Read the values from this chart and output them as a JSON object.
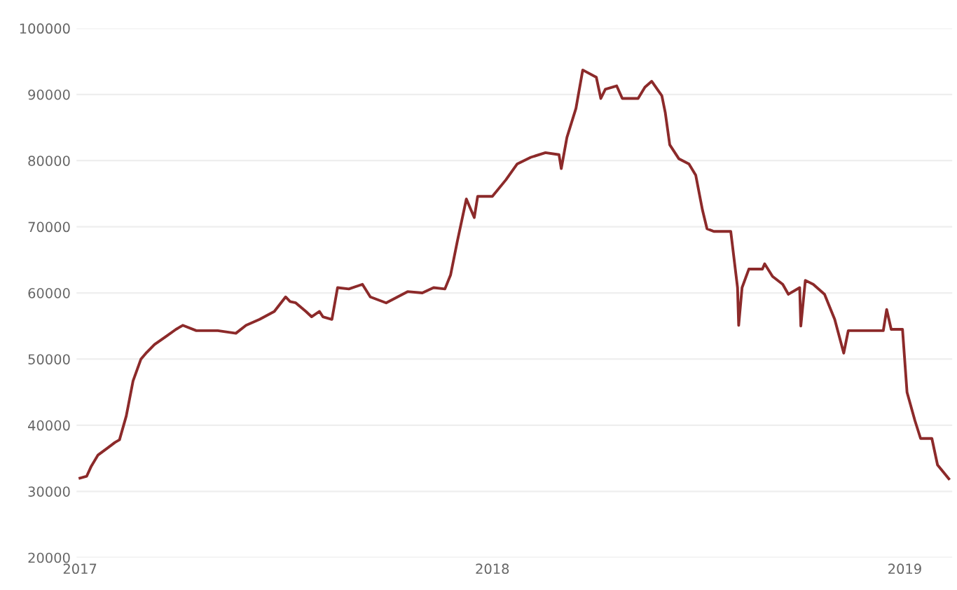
{
  "chart_data": {
    "type": "line",
    "color": "#8c2a2a",
    "grid": "y",
    "line_style": "solid",
    "marker": "none",
    "x": [
      "2017-01-01",
      "2017-01-07",
      "2017-01-11",
      "2017-01-17",
      "2017-01-25",
      "2017-02-01",
      "2017-02-05",
      "2017-02-11",
      "2017-02-17",
      "2017-02-24",
      "2017-03-01",
      "2017-03-08",
      "2017-03-18",
      "2017-03-27",
      "2017-04-02",
      "2017-04-14",
      "2017-05-03",
      "2017-05-19",
      "2017-05-28",
      "2017-06-09",
      "2017-06-22",
      "2017-07-02",
      "2017-07-06",
      "2017-07-11",
      "2017-07-20",
      "2017-07-25",
      "2017-08-01",
      "2017-08-04",
      "2017-08-12",
      "2017-08-17",
      "2017-08-27",
      "2017-09-08",
      "2017-09-15",
      "2017-09-29",
      "2017-10-18",
      "2017-10-31",
      "2017-11-10",
      "2017-11-20",
      "2017-11-25",
      "2017-12-01",
      "2017-12-09",
      "2017-12-16",
      "2017-12-19",
      "2018-01-01",
      "2018-01-13",
      "2018-01-23",
      "2018-02-04",
      "2018-02-17",
      "2018-03-01",
      "2018-03-03",
      "2018-03-08",
      "2018-03-16",
      "2018-03-22",
      "2018-04-03",
      "2018-04-07",
      "2018-04-11",
      "2018-04-21",
      "2018-04-26",
      "2018-05-10",
      "2018-05-16",
      "2018-05-22",
      "2018-05-31",
      "2018-06-03",
      "2018-06-07",
      "2018-06-15",
      "2018-06-24",
      "2018-06-30",
      "2018-07-06",
      "2018-07-10",
      "2018-07-16",
      "2018-07-31",
      "2018-08-06",
      "2018-08-07",
      "2018-08-10",
      "2018-08-16",
      "2018-08-28",
      "2018-08-30",
      "2018-09-06",
      "2018-09-15",
      "2018-09-20",
      "2018-09-30",
      "2018-10-01",
      "2018-10-05",
      "2018-10-12",
      "2018-10-22",
      "2018-10-31",
      "2018-11-08",
      "2018-11-12",
      "2018-12-13",
      "2018-12-16",
      "2018-12-20",
      "2018-12-30",
      "2019-01-03",
      "2019-01-10",
      "2019-01-15",
      "2019-01-25",
      "2019-01-30",
      "2019-02-09"
    ],
    "values": [
      32000,
      32300,
      33800,
      35500,
      36500,
      37400,
      37800,
      41400,
      46700,
      50000,
      51000,
      52200,
      53400,
      54500,
      55100,
      54300,
      54300,
      53900,
      55100,
      56000,
      57200,
      59400,
      58700,
      58500,
      57200,
      56400,
      57200,
      56400,
      56000,
      60800,
      60600,
      61300,
      59400,
      58500,
      60200,
      60000,
      60800,
      60600,
      62700,
      67800,
      74200,
      71400,
      74600,
      74600,
      77100,
      79500,
      80500,
      81200,
      80900,
      78800,
      83500,
      87900,
      93700,
      92600,
      89400,
      90800,
      91300,
      89400,
      89400,
      91100,
      92000,
      89800,
      87300,
      82400,
      80300,
      79500,
      77800,
      72500,
      69700,
      69300,
      69300,
      60800,
      55100,
      60800,
      63600,
      63600,
      64400,
      62500,
      61300,
      59800,
      60800,
      55000,
      61900,
      61300,
      59800,
      56000,
      50900,
      54300,
      54300,
      57500,
      54500,
      54500,
      45000,
      40700,
      38000,
      38000,
      34000,
      31900
    ],
    "xlim": [
      "2016-12-29",
      "2019-02-12"
    ],
    "xticks": [
      {
        "value": "2017-01-01",
        "label": "2017"
      },
      {
        "value": "2018-01-01",
        "label": "2018"
      },
      {
        "value": "2019-01-01",
        "label": "2019"
      }
    ],
    "ylim": [
      20000,
      100000
    ],
    "yticks": [
      20000,
      30000,
      40000,
      50000,
      60000,
      70000,
      80000,
      90000,
      100000
    ]
  }
}
